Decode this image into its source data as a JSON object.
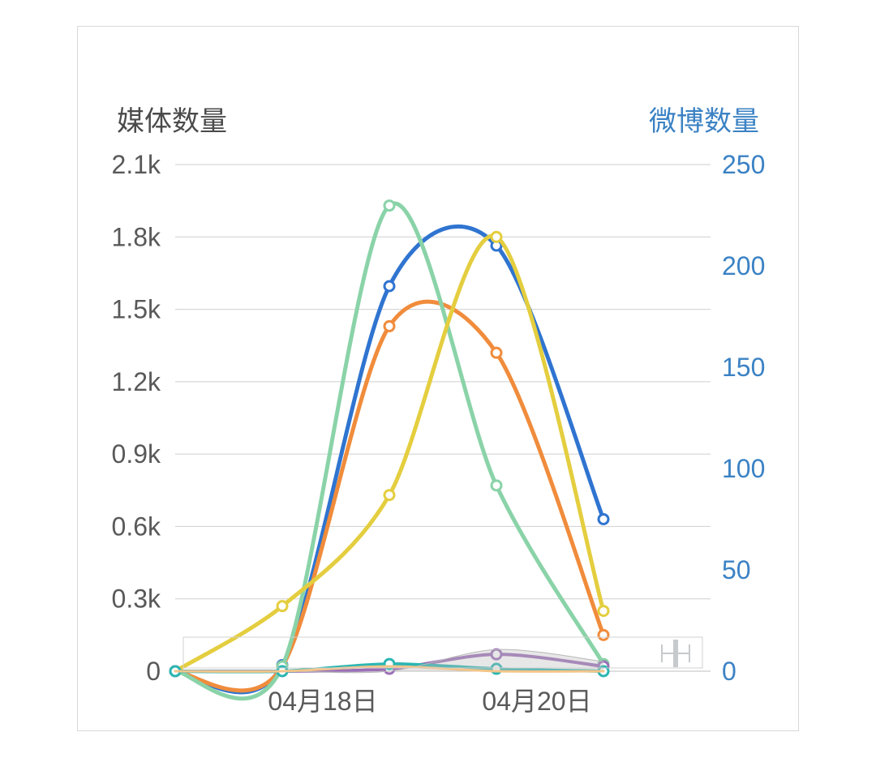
{
  "chart": {
    "type": "line-dual-axis",
    "background_color": "#ffffff",
    "border_color": "#d9d9d9",
    "grid_color": "#cfcfcf",
    "axis_color": "#bfbfbf",
    "title_left": "媒体数量",
    "title_right": "微博数量",
    "title_left_color": "#4a4a4a",
    "title_right_color": "#3b82c4",
    "title_fontsize": 34,
    "label_fontsize": 32,
    "x": {
      "n_points": 6,
      "tick_indices": [
        1,
        3
      ],
      "tick_labels": [
        "04月18日",
        "04月20日"
      ]
    },
    "y_left": {
      "min": 0,
      "max": 2.1,
      "ticks": [
        0,
        0.3,
        0.6,
        0.9,
        1.2,
        1.5,
        1.8,
        2.1
      ],
      "labels": [
        "0",
        "0.3k",
        "0.6k",
        "0.9k",
        "1.2k",
        "1.5k",
        "1.8k",
        "2.1k"
      ],
      "color": "#595959"
    },
    "y_right": {
      "min": 0,
      "max": 250,
      "ticks": [
        0,
        50,
        100,
        150,
        200,
        250
      ],
      "labels": [
        "0",
        "50",
        "100",
        "150",
        "200",
        "250"
      ],
      "color": "#3b82c4"
    },
    "marker_radius": 6,
    "marker_fill": "#ffffff",
    "marker_stroke_width": 3,
    "line_width": 5,
    "line_width_thin": 3,
    "series": [
      {
        "name": "blue",
        "axis": "right",
        "color": "#2f74d0",
        "values": [
          0,
          3,
          190,
          210,
          75,
          null
        ],
        "line_width": 5,
        "markers": true
      },
      {
        "name": "orange",
        "axis": "left",
        "color": "#f08c3c",
        "values": [
          0.0,
          0.02,
          1.43,
          1.32,
          0.15,
          null
        ],
        "line_width": 5,
        "markers": true
      },
      {
        "name": "green",
        "axis": "left",
        "color": "#8ad3a8",
        "values": [
          0.0,
          0.02,
          1.93,
          0.77,
          0.03,
          null
        ],
        "line_width": 5,
        "markers": true
      },
      {
        "name": "yellow",
        "axis": "left",
        "color": "#e4ce3f",
        "values": [
          0.0,
          0.27,
          0.73,
          1.8,
          0.25,
          null
        ],
        "line_width": 5,
        "markers": true
      },
      {
        "name": "purple",
        "axis": "left",
        "color": "#9b6fb8",
        "values": [
          0.0,
          0.0,
          0.01,
          0.07,
          0.02,
          null
        ],
        "line_width": 4,
        "markers": true
      },
      {
        "name": "teal",
        "axis": "left",
        "color": "#2cb6b3",
        "values": [
          0.0,
          0.0,
          0.03,
          0.01,
          0.0,
          null
        ],
        "line_width": 4,
        "markers": true
      },
      {
        "name": "gray-area",
        "axis": "left",
        "color": "#b9b9b9",
        "values": [
          0.0,
          0.0,
          0.0,
          0.09,
          0.04,
          null
        ],
        "line_width": 1,
        "markers": false,
        "area": true,
        "area_opacity": 0.35
      },
      {
        "name": "ambersoft",
        "axis": "left",
        "color": "#f3c58a",
        "values": [
          0.0,
          0.0,
          0.02,
          0.0,
          0.0,
          null
        ],
        "line_width": 3,
        "markers": false
      }
    ]
  }
}
